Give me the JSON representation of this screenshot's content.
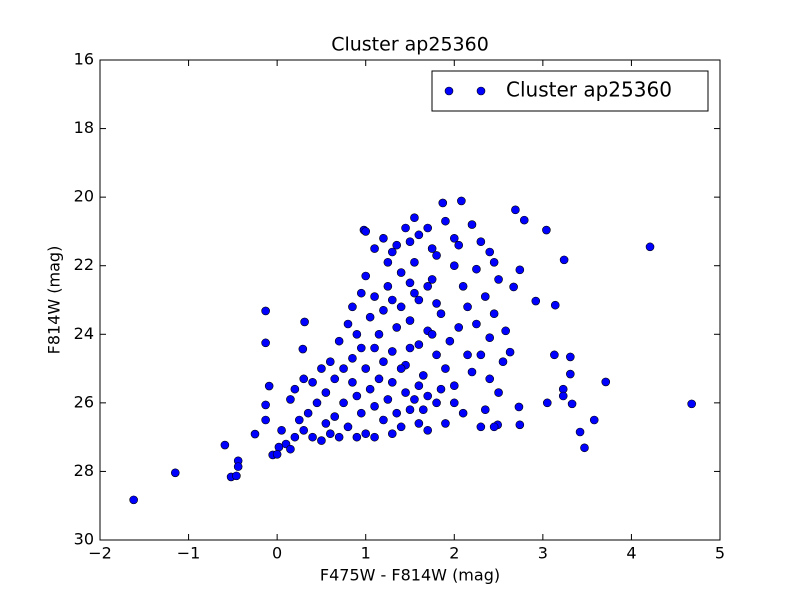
{
  "chart_data": {
    "type": "scatter",
    "title": "Cluster ap25360",
    "xlabel": "F475W - F814W (mag)",
    "ylabel": "F814W (mag)",
    "xlim": [
      -2,
      5
    ],
    "ylim": [
      30,
      16
    ],
    "xticks": [
      {
        "value": -2,
        "label": "−2"
      },
      {
        "value": -1,
        "label": "−1"
      },
      0,
      1,
      2,
      3,
      4,
      5
    ],
    "yticks": [
      16,
      18,
      20,
      22,
      24,
      26,
      28,
      30
    ],
    "grid": false,
    "legend": "upper right",
    "series": [
      {
        "name": "Cluster ap25360",
        "color": "#0000ff",
        "points": [
          [
            -1.62,
            28.83
          ],
          [
            -1.15,
            28.04
          ],
          [
            -0.59,
            27.23
          ],
          [
            -0.52,
            28.16
          ],
          [
            -0.46,
            28.13
          ],
          [
            -0.44,
            27.69
          ],
          [
            -0.44,
            27.86
          ],
          [
            -0.25,
            26.91
          ],
          [
            -0.13,
            23.32
          ],
          [
            -0.13,
            24.25
          ],
          [
            -0.09,
            25.51
          ],
          [
            -0.13,
            26.06
          ],
          [
            -0.13,
            26.5
          ],
          [
            -0.05,
            27.52
          ],
          [
            0.02,
            27.29
          ],
          [
            0.31,
            23.64
          ],
          [
            0.29,
            24.43
          ],
          [
            4.21,
            21.45
          ],
          [
            4.68,
            26.03
          ],
          [
            3.71,
            25.39
          ],
          [
            3.58,
            26.5
          ],
          [
            3.42,
            26.85
          ],
          [
            3.47,
            27.31
          ],
          [
            3.33,
            26.03
          ],
          [
            3.31,
            24.66
          ],
          [
            3.31,
            25.16
          ],
          [
            3.23,
            25.6
          ],
          [
            3.23,
            25.8
          ],
          [
            3.13,
            24.6
          ],
          [
            3.14,
            23.15
          ],
          [
            3.24,
            21.83
          ],
          [
            3.05,
            26.0
          ],
          [
            3.04,
            20.96
          ],
          [
            2.92,
            23.03
          ],
          [
            2.74,
            26.64
          ],
          [
            2.73,
            26.12
          ],
          [
            2.74,
            22.12
          ],
          [
            2.69,
            20.37
          ],
          [
            2.79,
            20.67
          ],
          [
            2.63,
            24.52
          ],
          [
            2.58,
            23.9
          ],
          [
            2.67,
            22.62
          ],
          [
            2.49,
            26.64
          ],
          [
            2.08,
            20.11
          ],
          [
            1.87,
            20.17
          ],
          [
            0.98,
            20.96
          ],
          [
            1.0,
            21.0
          ],
          [
            1.1,
            21.5
          ],
          [
            1.2,
            21.2
          ],
          [
            1.3,
            21.6
          ],
          [
            1.35,
            21.4
          ],
          [
            1.45,
            20.9
          ],
          [
            1.5,
            21.3
          ],
          [
            1.55,
            20.6
          ],
          [
            1.6,
            21.1
          ],
          [
            1.7,
            20.9
          ],
          [
            1.75,
            21.5
          ],
          [
            1.8,
            21.7
          ],
          [
            1.9,
            20.7
          ],
          [
            2.0,
            21.2
          ],
          [
            2.05,
            21.4
          ],
          [
            2.2,
            20.8
          ],
          [
            2.3,
            21.3
          ],
          [
            2.4,
            21.6
          ],
          [
            2.45,
            21.9
          ],
          [
            2.5,
            22.4
          ],
          [
            2.25,
            22.1
          ],
          [
            2.1,
            22.6
          ],
          [
            2.15,
            23.2
          ],
          [
            2.35,
            22.9
          ],
          [
            2.45,
            23.4
          ],
          [
            2.4,
            24.1
          ],
          [
            2.55,
            24.8
          ],
          [
            2.3,
            24.6
          ],
          [
            2.2,
            25.1
          ],
          [
            2.4,
            25.3
          ],
          [
            2.5,
            25.7
          ],
          [
            2.35,
            26.2
          ],
          [
            2.45,
            26.7
          ],
          [
            2.3,
            26.7
          ],
          [
            2.1,
            26.3
          ],
          [
            2.0,
            26.0
          ],
          [
            1.9,
            26.6
          ],
          [
            1.7,
            26.8
          ],
          [
            1.6,
            26.6
          ],
          [
            1.5,
            26.2
          ],
          [
            1.4,
            26.7
          ],
          [
            1.3,
            26.9
          ],
          [
            1.2,
            26.5
          ],
          [
            1.1,
            27.0
          ],
          [
            1.0,
            26.9
          ],
          [
            0.9,
            27.0
          ],
          [
            0.8,
            26.7
          ],
          [
            0.7,
            27.0
          ],
          [
            0.6,
            26.9
          ],
          [
            0.5,
            27.1
          ],
          [
            0.4,
            27.0
          ],
          [
            0.3,
            26.8
          ],
          [
            0.2,
            27.0
          ],
          [
            0.1,
            27.2
          ],
          [
            0.05,
            26.8
          ],
          [
            0.0,
            27.5
          ],
          [
            0.15,
            27.35
          ],
          [
            0.25,
            26.5
          ],
          [
            0.35,
            26.3
          ],
          [
            0.45,
            26.0
          ],
          [
            0.55,
            25.7
          ],
          [
            0.65,
            25.3
          ],
          [
            0.75,
            25.0
          ],
          [
            0.85,
            24.7
          ],
          [
            0.95,
            24.4
          ],
          [
            0.5,
            25.0
          ],
          [
            0.4,
            25.4
          ],
          [
            0.3,
            25.3
          ],
          [
            0.2,
            25.6
          ],
          [
            0.15,
            25.9
          ],
          [
            0.6,
            24.8
          ],
          [
            0.7,
            24.2
          ],
          [
            0.8,
            23.7
          ],
          [
            0.85,
            23.2
          ],
          [
            0.95,
            22.8
          ],
          [
            1.0,
            22.3
          ],
          [
            1.05,
            23.5
          ],
          [
            1.1,
            22.9
          ],
          [
            1.15,
            24.0
          ],
          [
            1.2,
            23.3
          ],
          [
            1.25,
            22.6
          ],
          [
            1.3,
            24.5
          ],
          [
            1.35,
            23.8
          ],
          [
            1.4,
            22.2
          ],
          [
            1.45,
            24.9
          ],
          [
            1.5,
            23.6
          ],
          [
            1.55,
            22.8
          ],
          [
            1.6,
            24.3
          ],
          [
            1.65,
            25.2
          ],
          [
            1.7,
            23.9
          ],
          [
            1.75,
            22.4
          ],
          [
            1.8,
            24.6
          ],
          [
            1.85,
            23.4
          ],
          [
            1.9,
            25.0
          ],
          [
            1.95,
            24.2
          ],
          [
            2.0,
            25.5
          ],
          [
            2.05,
            23.8
          ],
          [
            1.0,
            25.0
          ],
          [
            1.05,
            25.6
          ],
          [
            1.1,
            26.1
          ],
          [
            1.15,
            25.3
          ],
          [
            1.2,
            24.8
          ],
          [
            1.25,
            25.9
          ],
          [
            1.3,
            25.4
          ],
          [
            1.35,
            26.3
          ],
          [
            1.4,
            25.0
          ],
          [
            1.45,
            25.7
          ],
          [
            1.5,
            24.4
          ],
          [
            1.55,
            25.9
          ],
          [
            1.6,
            25.5
          ],
          [
            1.65,
            26.2
          ],
          [
            1.7,
            25.8
          ],
          [
            1.75,
            24.0
          ],
          [
            1.8,
            26.0
          ],
          [
            1.85,
            25.6
          ],
          [
            0.9,
            25.8
          ],
          [
            0.95,
            26.3
          ],
          [
            0.85,
            25.4
          ],
          [
            0.75,
            26.0
          ],
          [
            0.65,
            26.4
          ],
          [
            0.55,
            26.6
          ],
          [
            1.25,
            21.9
          ],
          [
            1.55,
            21.9
          ],
          [
            1.7,
            22.6
          ],
          [
            1.4,
            23.2
          ],
          [
            1.1,
            24.4
          ],
          [
            0.9,
            24.0
          ],
          [
            1.6,
            23.0
          ],
          [
            1.8,
            23.1
          ],
          [
            2.0,
            22.0
          ],
          [
            2.15,
            24.6
          ],
          [
            2.25,
            23.7
          ],
          [
            1.3,
            23.0
          ],
          [
            1.5,
            22.5
          ]
        ]
      }
    ]
  }
}
